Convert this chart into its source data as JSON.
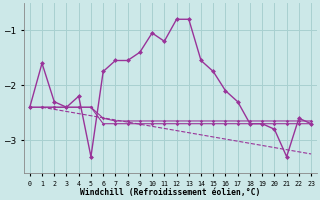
{
  "xlabel": "Windchill (Refroidissement éolien,°C)",
  "x": [
    0,
    1,
    2,
    3,
    4,
    5,
    6,
    7,
    8,
    9,
    10,
    11,
    12,
    13,
    14,
    15,
    16,
    17,
    18,
    19,
    20,
    21,
    22,
    23
  ],
  "main_line": [
    -2.4,
    -1.6,
    -2.3,
    -2.4,
    -2.2,
    -3.3,
    -1.75,
    -1.55,
    -1.55,
    -1.4,
    -1.05,
    -1.2,
    -0.8,
    -0.8,
    -1.55,
    -1.75,
    -2.1,
    -2.3,
    -2.7,
    -2.7,
    -2.8,
    -3.3,
    -2.6,
    -2.7
  ],
  "flat_line1": [
    -2.4,
    -2.4,
    -2.4,
    -2.4,
    -2.4,
    -2.4,
    -2.6,
    -2.65,
    -2.65,
    -2.65,
    -2.65,
    -2.65,
    -2.65,
    -2.65,
    -2.65,
    -2.65,
    -2.65,
    -2.65,
    -2.65,
    -2.65,
    -2.65,
    -2.65,
    -2.65,
    -2.65
  ],
  "flat_line2": [
    -2.4,
    -2.4,
    -2.4,
    -2.4,
    -2.4,
    -2.4,
    -2.7,
    -2.7,
    -2.7,
    -2.7,
    -2.7,
    -2.7,
    -2.7,
    -2.7,
    -2.7,
    -2.7,
    -2.7,
    -2.7,
    -2.7,
    -2.7,
    -2.7,
    -2.7,
    -2.7,
    -2.7
  ],
  "trend_x": [
    1,
    23
  ],
  "trend_y": [
    -2.4,
    -3.25
  ],
  "color": "#993399",
  "bg_color": "#cce8e8",
  "grid_color": "#a8d0d0",
  "ylim": [
    -3.6,
    -0.5
  ],
  "yticks": [
    -3,
    -2,
    -1
  ],
  "xlim": [
    -0.5,
    23.5
  ]
}
